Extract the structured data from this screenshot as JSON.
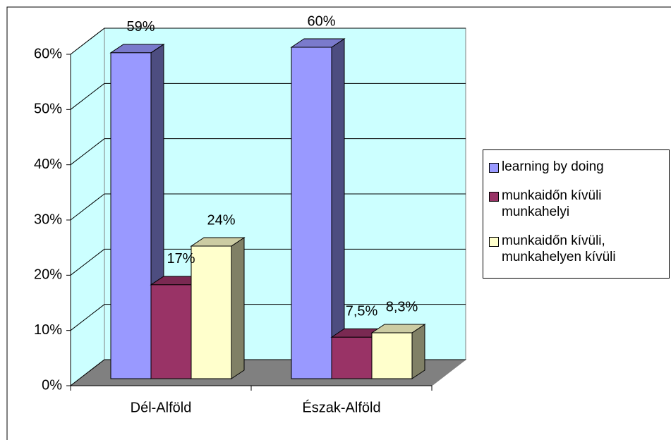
{
  "chart_data": {
    "type": "bar3d",
    "categories": [
      "Dél-Alföld",
      "Észak-Alföld"
    ],
    "series": [
      {
        "name": "learning by doing",
        "color": "#9999ff",
        "values": [
          59,
          60
        ],
        "value_labels": [
          "59%",
          "60%"
        ]
      },
      {
        "name": "munkaidőn kívüli munkahelyi",
        "color": "#993366",
        "values": [
          17,
          7.5
        ],
        "value_labels": [
          "17%",
          "7,5%"
        ]
      },
      {
        "name": "munkaidőn kívüli, munkahelyen kívüli",
        "color": "#ffffcc",
        "values": [
          24,
          8.3
        ],
        "value_labels": [
          "24%",
          "8,3%"
        ]
      }
    ],
    "ylim": [
      0,
      60
    ],
    "yticks": [
      {
        "value": 0,
        "label": "0%"
      },
      {
        "value": 10,
        "label": "10%"
      },
      {
        "value": 20,
        "label": "20%"
      },
      {
        "value": 30,
        "label": "30%"
      },
      {
        "value": 40,
        "label": "40%"
      },
      {
        "value": 50,
        "label": "50%"
      },
      {
        "value": 60,
        "label": "60%"
      }
    ],
    "grid": true,
    "legend": "right"
  }
}
